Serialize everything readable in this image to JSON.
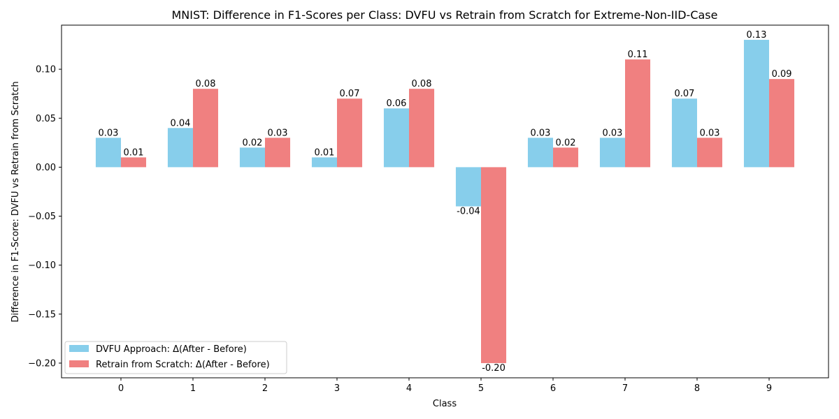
{
  "chart_data": {
    "type": "bar",
    "title": "MNIST: Difference in F1-Scores per Class: DVFU vs Retrain from Scratch for Extreme-Non-IID-Case",
    "xlabel": "Class",
    "ylabel": "Difference in F1-Score: DVFU vs Retrain from Scratch",
    "categories": [
      "0",
      "1",
      "2",
      "3",
      "4",
      "5",
      "6",
      "7",
      "8",
      "9"
    ],
    "series": [
      {
        "name": "DVFU Approach: Δ(After - Before)",
        "color": "#87ceeb",
        "values": [
          0.03,
          0.04,
          0.02,
          0.01,
          0.06,
          -0.04,
          0.03,
          0.03,
          0.07,
          0.13
        ],
        "labels": [
          "0.03",
          "0.04",
          "0.02",
          "0.01",
          "0.06",
          "-0.04",
          "0.03",
          "0.03",
          "0.07",
          "0.13"
        ]
      },
      {
        "name": "Retrain from Scratch: Δ(After - Before)",
        "color": "#f08080",
        "values": [
          0.01,
          0.08,
          0.03,
          0.07,
          0.08,
          -0.2,
          0.02,
          0.11,
          0.03,
          0.09
        ],
        "labels": [
          "0.01",
          "0.08",
          "0.03",
          "0.07",
          "0.08",
          "-0.20",
          "0.02",
          "0.11",
          "0.03",
          "0.09"
        ]
      }
    ],
    "ylim": [
      -0.215,
      0.145
    ],
    "yticks": [
      -0.2,
      -0.15,
      -0.1,
      -0.05,
      0.0,
      0.05,
      0.1
    ],
    "ytick_labels": [
      "−0.20",
      "−0.15",
      "−0.10",
      "−0.05",
      "0.00",
      "0.05",
      "0.10"
    ],
    "grid": false,
    "legend_position": "lower-left"
  }
}
